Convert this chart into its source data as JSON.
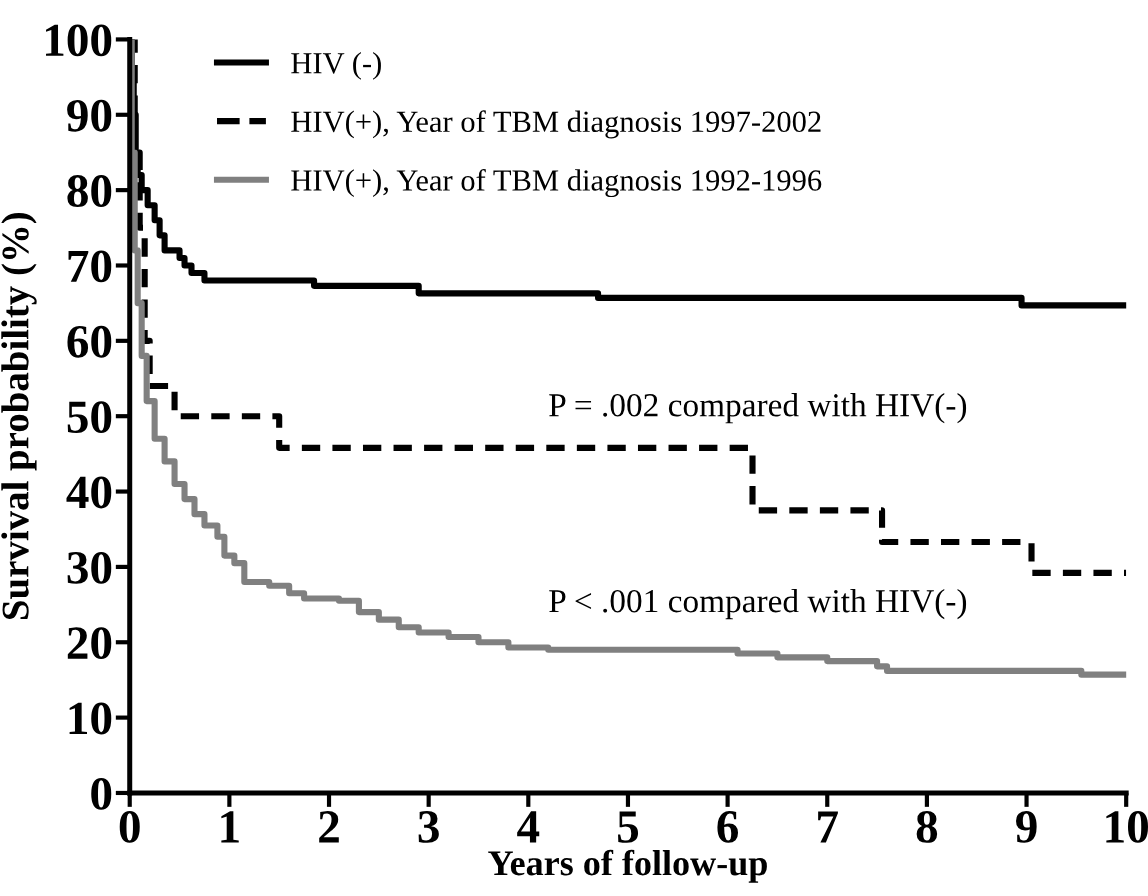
{
  "chart_data": {
    "type": "step",
    "xlabel": "Years of follow-up",
    "ylabel": "Survival probability (%)",
    "xlim": [
      0,
      10
    ],
    "ylim": [
      0,
      100
    ],
    "xticks": [
      0,
      1,
      2,
      3,
      4,
      5,
      6,
      7,
      8,
      9,
      10
    ],
    "yticks": [
      0,
      10,
      20,
      30,
      40,
      50,
      60,
      70,
      80,
      90,
      100
    ],
    "grid": false,
    "legend": "top",
    "marker": "none",
    "annotations": [
      "P = .002 compared with HIV(-)",
      "P < .001 compared with HIV(-)"
    ],
    "series": [
      {
        "name": "HIV (-)",
        "color": "#000000",
        "line_style": "solid",
        "x": [
          0,
          0.02,
          0.04,
          0.06,
          0.08,
          0.12,
          0.18,
          0.25,
          0.3,
          0.35,
          0.5,
          0.55,
          0.62,
          0.75,
          1.85,
          2.9,
          4.7,
          8.95,
          10
        ],
        "values": [
          100,
          95,
          90,
          85,
          82,
          80,
          78,
          76,
          74,
          72,
          71,
          70,
          69,
          68,
          67.3,
          66.3,
          65.7,
          64.7,
          64.7
        ]
      },
      {
        "name": "HIV(+), Year of TBM diagnosis 1997-2002",
        "color": "#000000",
        "line_style": "dashed",
        "x": [
          0,
          0.05,
          0.1,
          0.15,
          0.2,
          0.45,
          1.5,
          6.25,
          7.55,
          9.05,
          10
        ],
        "values": [
          100,
          85,
          75,
          60,
          54,
          50,
          45.8,
          37.5,
          33.3,
          29.2,
          29.2
        ]
      },
      {
        "name": "HIV(+), Year of TBM diagnosis 1992-1996",
        "color": "#808080",
        "line_style": "solid",
        "x": [
          0,
          0.02,
          0.05,
          0.08,
          0.12,
          0.17,
          0.25,
          0.35,
          0.45,
          0.55,
          0.65,
          0.75,
          0.88,
          0.95,
          1.05,
          1.15,
          1.4,
          1.6,
          1.75,
          2.1,
          2.3,
          2.5,
          2.7,
          2.9,
          3.2,
          3.5,
          3.8,
          4.2,
          6.1,
          6.5,
          7.0,
          7.5,
          7.6,
          9.55,
          10
        ],
        "values": [
          100,
          85,
          72,
          65,
          58,
          52,
          47,
          44,
          41,
          39,
          37,
          35.5,
          34,
          31.5,
          30.5,
          28,
          27.5,
          26.5,
          25.8,
          25.5,
          24,
          23,
          22,
          21.3,
          20.7,
          20,
          19.3,
          19,
          18.5,
          18,
          17.5,
          16.8,
          16.2,
          15.7,
          15.7
        ]
      }
    ]
  }
}
